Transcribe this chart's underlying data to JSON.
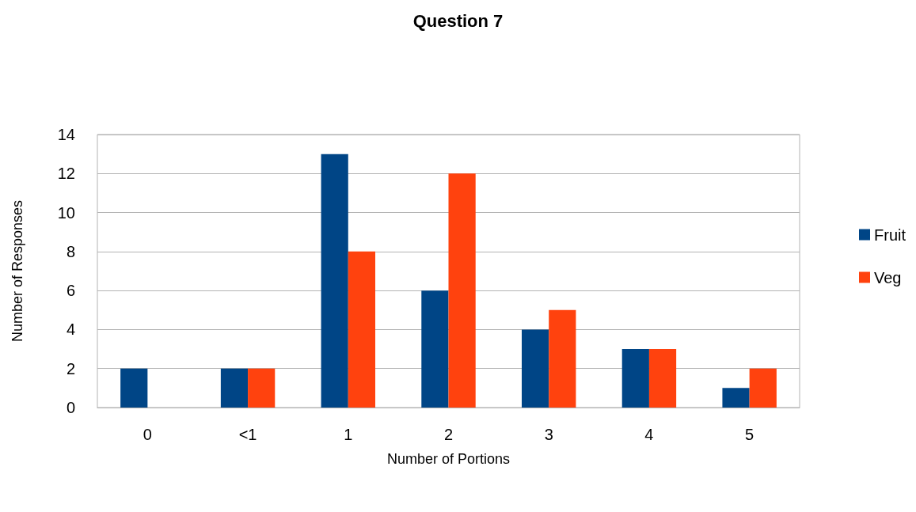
{
  "chart_data": {
    "type": "bar",
    "title": "Question 7",
    "xlabel": "Number of Portions",
    "ylabel": "Number of Responses",
    "categories": [
      "0",
      "<1",
      "1",
      "2",
      "3",
      "4",
      "5"
    ],
    "series": [
      {
        "name": "Fruit",
        "color": "#004586",
        "values": [
          2,
          2,
          13,
          6,
          4,
          3,
          1
        ]
      },
      {
        "name": "Veg",
        "color": "#ff420e",
        "values": [
          0,
          2,
          8,
          12,
          5,
          3,
          2
        ]
      }
    ],
    "ylim": [
      0,
      14
    ],
    "yticks": [
      0,
      2,
      4,
      6,
      8,
      10,
      12,
      14
    ],
    "grid": "y",
    "legend": "right"
  }
}
